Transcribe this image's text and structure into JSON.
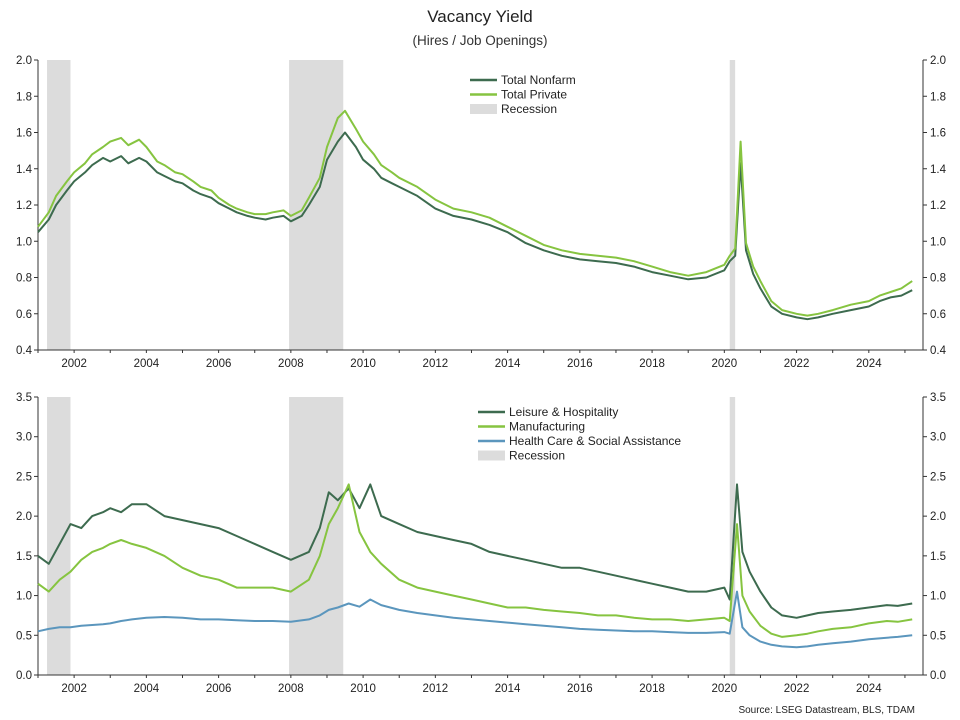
{
  "title": "Vacancy Yield",
  "subtitle": "(Hires / Job Openings)",
  "source": "Source: LSEG Datastream, BLS, TDAM",
  "colors": {
    "dark_green": "#3d6b4f",
    "light_green": "#86c440",
    "blue": "#5b96bd",
    "recession": "#dcdcdc"
  },
  "chart_data": [
    {
      "type": "line",
      "title": "",
      "xlim": [
        2001.0,
        2025.5
      ],
      "ylim": [
        0.4,
        2.0
      ],
      "x_ticks": [
        2002,
        2004,
        2006,
        2008,
        2010,
        2012,
        2014,
        2016,
        2018,
        2020,
        2022,
        2024
      ],
      "x_tick_labels": [
        "2002",
        "2004",
        "2006",
        "2008",
        "2010",
        "2012",
        "2014",
        "2016",
        "2018",
        "2020",
        "2022",
        "2024"
      ],
      "y_ticks": [
        0.4,
        0.6,
        0.8,
        1.0,
        1.2,
        1.4,
        1.6,
        1.8,
        2.0
      ],
      "y_tick_labels": [
        "0.4",
        "0.6",
        "0.8",
        "1.0",
        "1.2",
        "1.4",
        "1.6",
        "1.8",
        "2.0"
      ],
      "grid": false,
      "legend_position": "top-center",
      "recessions": [
        [
          2001.25,
          2001.9
        ],
        [
          2007.95,
          2009.45
        ],
        [
          2020.15,
          2020.3
        ]
      ],
      "legend": [
        {
          "label": "Total Nonfarm",
          "kind": "line",
          "color": "#3d6b4f"
        },
        {
          "label": "Total Private",
          "kind": "line",
          "color": "#86c440"
        },
        {
          "label": "Recession",
          "kind": "box",
          "color": "#dcdcdc"
        }
      ],
      "series": [
        {
          "name": "Total Nonfarm",
          "color": "#3d6b4f",
          "x": [
            2001.0,
            2001.3,
            2001.5,
            2001.8,
            2002.0,
            2002.3,
            2002.5,
            2002.8,
            2003.0,
            2003.3,
            2003.5,
            2003.8,
            2004.0,
            2004.3,
            2004.5,
            2004.8,
            2005.0,
            2005.3,
            2005.5,
            2005.8,
            2006.0,
            2006.3,
            2006.5,
            2006.8,
            2007.0,
            2007.3,
            2007.5,
            2007.8,
            2008.0,
            2008.3,
            2008.5,
            2008.8,
            2009.0,
            2009.3,
            2009.5,
            2009.8,
            2010.0,
            2010.3,
            2010.5,
            2010.8,
            2011.0,
            2011.5,
            2012.0,
            2012.5,
            2013.0,
            2013.5,
            2014.0,
            2014.5,
            2015.0,
            2015.5,
            2016.0,
            2016.5,
            2017.0,
            2017.5,
            2018.0,
            2018.5,
            2019.0,
            2019.5,
            2020.0,
            2020.15,
            2020.3,
            2020.45,
            2020.6,
            2020.8,
            2021.0,
            2021.3,
            2021.6,
            2022.0,
            2022.3,
            2022.6,
            2023.0,
            2023.5,
            2024.0,
            2024.3,
            2024.6,
            2024.9,
            2025.2
          ],
          "values": [
            1.05,
            1.12,
            1.2,
            1.28,
            1.33,
            1.38,
            1.42,
            1.46,
            1.44,
            1.47,
            1.43,
            1.46,
            1.44,
            1.38,
            1.36,
            1.33,
            1.32,
            1.28,
            1.26,
            1.24,
            1.21,
            1.18,
            1.16,
            1.14,
            1.13,
            1.12,
            1.13,
            1.14,
            1.11,
            1.14,
            1.2,
            1.3,
            1.45,
            1.55,
            1.6,
            1.52,
            1.45,
            1.4,
            1.35,
            1.32,
            1.3,
            1.25,
            1.18,
            1.14,
            1.12,
            1.09,
            1.05,
            0.99,
            0.95,
            0.92,
            0.9,
            0.89,
            0.88,
            0.86,
            0.83,
            0.81,
            0.79,
            0.8,
            0.84,
            0.89,
            0.92,
            1.43,
            0.95,
            0.82,
            0.74,
            0.64,
            0.6,
            0.58,
            0.57,
            0.58,
            0.6,
            0.62,
            0.64,
            0.67,
            0.69,
            0.7,
            0.73
          ]
        },
        {
          "name": "Total Private",
          "color": "#86c440",
          "x": [
            2001.0,
            2001.3,
            2001.5,
            2001.8,
            2002.0,
            2002.3,
            2002.5,
            2002.8,
            2003.0,
            2003.3,
            2003.5,
            2003.8,
            2004.0,
            2004.3,
            2004.5,
            2004.8,
            2005.0,
            2005.3,
            2005.5,
            2005.8,
            2006.0,
            2006.3,
            2006.5,
            2006.8,
            2007.0,
            2007.3,
            2007.5,
            2007.8,
            2008.0,
            2008.3,
            2008.5,
            2008.8,
            2009.0,
            2009.3,
            2009.5,
            2009.8,
            2010.0,
            2010.3,
            2010.5,
            2010.8,
            2011.0,
            2011.5,
            2012.0,
            2012.5,
            2013.0,
            2013.5,
            2014.0,
            2014.5,
            2015.0,
            2015.5,
            2016.0,
            2016.5,
            2017.0,
            2017.5,
            2018.0,
            2018.5,
            2019.0,
            2019.5,
            2020.0,
            2020.15,
            2020.3,
            2020.45,
            2020.6,
            2020.8,
            2021.0,
            2021.3,
            2021.6,
            2022.0,
            2022.3,
            2022.6,
            2023.0,
            2023.5,
            2024.0,
            2024.3,
            2024.6,
            2024.9,
            2025.2
          ],
          "values": [
            1.08,
            1.16,
            1.25,
            1.33,
            1.38,
            1.43,
            1.48,
            1.52,
            1.55,
            1.57,
            1.53,
            1.56,
            1.52,
            1.44,
            1.42,
            1.38,
            1.37,
            1.33,
            1.3,
            1.28,
            1.24,
            1.2,
            1.18,
            1.16,
            1.15,
            1.15,
            1.16,
            1.17,
            1.14,
            1.17,
            1.24,
            1.35,
            1.52,
            1.68,
            1.72,
            1.62,
            1.55,
            1.48,
            1.42,
            1.38,
            1.35,
            1.3,
            1.23,
            1.18,
            1.16,
            1.13,
            1.08,
            1.03,
            0.98,
            0.95,
            0.93,
            0.92,
            0.91,
            0.89,
            0.86,
            0.83,
            0.81,
            0.83,
            0.87,
            0.92,
            0.96,
            1.55,
            0.99,
            0.86,
            0.78,
            0.67,
            0.62,
            0.6,
            0.59,
            0.6,
            0.62,
            0.65,
            0.67,
            0.7,
            0.72,
            0.74,
            0.78
          ]
        }
      ]
    },
    {
      "type": "line",
      "title": "",
      "xlim": [
        2001.0,
        2025.5
      ],
      "ylim": [
        0.0,
        3.5
      ],
      "x_ticks": [
        2002,
        2004,
        2006,
        2008,
        2010,
        2012,
        2014,
        2016,
        2018,
        2020,
        2022,
        2024
      ],
      "x_tick_labels": [
        "2002",
        "2004",
        "2006",
        "2008",
        "2010",
        "2012",
        "2014",
        "2016",
        "2018",
        "2020",
        "2022",
        "2024"
      ],
      "y_ticks": [
        0.0,
        0.5,
        1.0,
        1.5,
        2.0,
        2.5,
        3.0,
        3.5
      ],
      "y_tick_labels": [
        "0.0",
        "0.5",
        "1.0",
        "1.5",
        "2.0",
        "2.5",
        "3.0",
        "3.5"
      ],
      "grid": false,
      "legend_position": "top-center",
      "recessions": [
        [
          2001.25,
          2001.9
        ],
        [
          2007.95,
          2009.45
        ],
        [
          2020.15,
          2020.3
        ]
      ],
      "legend": [
        {
          "label": "Leisure & Hospitality",
          "kind": "line",
          "color": "#3d6b4f"
        },
        {
          "label": "Manufacturing",
          "kind": "line",
          "color": "#86c440"
        },
        {
          "label": "Health Care & Social Assistance",
          "kind": "line",
          "color": "#5b96bd"
        },
        {
          "label": "Recession",
          "kind": "box",
          "color": "#dcdcdc"
        }
      ],
      "series": [
        {
          "name": "Leisure & Hospitality",
          "color": "#3d6b4f",
          "x": [
            2001.0,
            2001.3,
            2001.6,
            2001.9,
            2002.2,
            2002.5,
            2002.8,
            2003.0,
            2003.3,
            2003.6,
            2004.0,
            2004.5,
            2005.0,
            2005.5,
            2006.0,
            2006.5,
            2007.0,
            2007.5,
            2008.0,
            2008.5,
            2008.8,
            2009.05,
            2009.3,
            2009.6,
            2009.9,
            2010.2,
            2010.5,
            2011.0,
            2011.5,
            2012.0,
            2012.5,
            2013.0,
            2013.5,
            2014.0,
            2014.5,
            2015.0,
            2015.5,
            2016.0,
            2016.5,
            2017.0,
            2017.5,
            2018.0,
            2018.5,
            2019.0,
            2019.5,
            2020.0,
            2020.15,
            2020.35,
            2020.5,
            2020.7,
            2021.0,
            2021.3,
            2021.6,
            2022.0,
            2022.3,
            2022.6,
            2023.0,
            2023.5,
            2024.0,
            2024.5,
            2024.8,
            2025.2
          ],
          "values": [
            1.5,
            1.4,
            1.65,
            1.9,
            1.85,
            2.0,
            2.05,
            2.1,
            2.05,
            2.15,
            2.15,
            2.0,
            1.95,
            1.9,
            1.85,
            1.75,
            1.65,
            1.55,
            1.45,
            1.55,
            1.85,
            2.3,
            2.2,
            2.35,
            2.1,
            2.4,
            2.0,
            1.9,
            1.8,
            1.75,
            1.7,
            1.65,
            1.55,
            1.5,
            1.45,
            1.4,
            1.35,
            1.35,
            1.3,
            1.25,
            1.2,
            1.15,
            1.1,
            1.05,
            1.05,
            1.1,
            0.95,
            2.4,
            1.55,
            1.3,
            1.05,
            0.85,
            0.75,
            0.72,
            0.75,
            0.78,
            0.8,
            0.82,
            0.85,
            0.88,
            0.87,
            0.9
          ]
        },
        {
          "name": "Manufacturing",
          "color": "#86c440",
          "x": [
            2001.0,
            2001.3,
            2001.6,
            2001.9,
            2002.2,
            2002.5,
            2002.8,
            2003.0,
            2003.3,
            2003.6,
            2004.0,
            2004.5,
            2005.0,
            2005.5,
            2006.0,
            2006.5,
            2007.0,
            2007.5,
            2008.0,
            2008.5,
            2008.8,
            2009.05,
            2009.3,
            2009.6,
            2009.9,
            2010.2,
            2010.5,
            2011.0,
            2011.5,
            2012.0,
            2012.5,
            2013.0,
            2013.5,
            2014.0,
            2014.5,
            2015.0,
            2015.5,
            2016.0,
            2016.5,
            2017.0,
            2017.5,
            2018.0,
            2018.5,
            2019.0,
            2019.5,
            2020.0,
            2020.15,
            2020.35,
            2020.5,
            2020.7,
            2021.0,
            2021.3,
            2021.6,
            2022.0,
            2022.3,
            2022.6,
            2023.0,
            2023.5,
            2024.0,
            2024.5,
            2024.8,
            2025.2
          ],
          "values": [
            1.15,
            1.05,
            1.2,
            1.3,
            1.45,
            1.55,
            1.6,
            1.65,
            1.7,
            1.65,
            1.6,
            1.5,
            1.35,
            1.25,
            1.2,
            1.1,
            1.1,
            1.1,
            1.05,
            1.2,
            1.5,
            1.9,
            2.1,
            2.4,
            1.8,
            1.55,
            1.4,
            1.2,
            1.1,
            1.05,
            1.0,
            0.95,
            0.9,
            0.85,
            0.85,
            0.82,
            0.8,
            0.78,
            0.75,
            0.75,
            0.72,
            0.7,
            0.7,
            0.68,
            0.7,
            0.72,
            0.68,
            1.9,
            1.0,
            0.8,
            0.62,
            0.52,
            0.48,
            0.5,
            0.52,
            0.55,
            0.58,
            0.6,
            0.65,
            0.68,
            0.67,
            0.7
          ]
        },
        {
          "name": "Health Care & Social Assistance",
          "color": "#5b96bd",
          "x": [
            2001.0,
            2001.3,
            2001.6,
            2001.9,
            2002.2,
            2002.5,
            2002.8,
            2003.0,
            2003.3,
            2003.6,
            2004.0,
            2004.5,
            2005.0,
            2005.5,
            2006.0,
            2006.5,
            2007.0,
            2007.5,
            2008.0,
            2008.5,
            2008.8,
            2009.05,
            2009.3,
            2009.6,
            2009.9,
            2010.2,
            2010.5,
            2011.0,
            2011.5,
            2012.0,
            2012.5,
            2013.0,
            2013.5,
            2014.0,
            2014.5,
            2015.0,
            2015.5,
            2016.0,
            2016.5,
            2017.0,
            2017.5,
            2018.0,
            2018.5,
            2019.0,
            2019.5,
            2020.0,
            2020.15,
            2020.35,
            2020.5,
            2020.7,
            2021.0,
            2021.3,
            2021.6,
            2022.0,
            2022.3,
            2022.6,
            2023.0,
            2023.5,
            2024.0,
            2024.5,
            2024.8,
            2025.2
          ],
          "values": [
            0.55,
            0.58,
            0.6,
            0.6,
            0.62,
            0.63,
            0.64,
            0.65,
            0.68,
            0.7,
            0.72,
            0.73,
            0.72,
            0.7,
            0.7,
            0.69,
            0.68,
            0.68,
            0.67,
            0.7,
            0.75,
            0.82,
            0.85,
            0.9,
            0.86,
            0.95,
            0.88,
            0.82,
            0.78,
            0.75,
            0.72,
            0.7,
            0.68,
            0.66,
            0.64,
            0.62,
            0.6,
            0.58,
            0.57,
            0.56,
            0.55,
            0.55,
            0.54,
            0.53,
            0.53,
            0.54,
            0.52,
            1.05,
            0.6,
            0.5,
            0.42,
            0.38,
            0.36,
            0.35,
            0.36,
            0.38,
            0.4,
            0.42,
            0.45,
            0.47,
            0.48,
            0.5
          ]
        }
      ]
    }
  ]
}
